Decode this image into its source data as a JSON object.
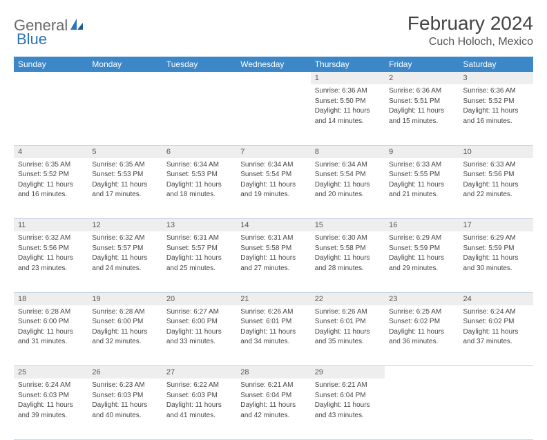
{
  "logo": {
    "part1": "General",
    "part2": "Blue"
  },
  "title": "February 2024",
  "location": "Cuch Holoch, Mexico",
  "colors": {
    "header_bg": "#3b87c8",
    "header_text": "#ffffff",
    "daynum_bg": "#eeeeee",
    "body_text": "#444444",
    "logo_gray": "#6a6a6a",
    "logo_blue": "#2a74b8",
    "grid_border": "#c9d6e2"
  },
  "weekdays": [
    "Sunday",
    "Monday",
    "Tuesday",
    "Wednesday",
    "Thursday",
    "Friday",
    "Saturday"
  ],
  "weeks": [
    [
      null,
      null,
      null,
      null,
      {
        "n": "1",
        "sr": "Sunrise: 6:36 AM",
        "ss": "Sunset: 5:50 PM",
        "d1": "Daylight: 11 hours",
        "d2": "and 14 minutes."
      },
      {
        "n": "2",
        "sr": "Sunrise: 6:36 AM",
        "ss": "Sunset: 5:51 PM",
        "d1": "Daylight: 11 hours",
        "d2": "and 15 minutes."
      },
      {
        "n": "3",
        "sr": "Sunrise: 6:36 AM",
        "ss": "Sunset: 5:52 PM",
        "d1": "Daylight: 11 hours",
        "d2": "and 16 minutes."
      }
    ],
    [
      {
        "n": "4",
        "sr": "Sunrise: 6:35 AM",
        "ss": "Sunset: 5:52 PM",
        "d1": "Daylight: 11 hours",
        "d2": "and 16 minutes."
      },
      {
        "n": "5",
        "sr": "Sunrise: 6:35 AM",
        "ss": "Sunset: 5:53 PM",
        "d1": "Daylight: 11 hours",
        "d2": "and 17 minutes."
      },
      {
        "n": "6",
        "sr": "Sunrise: 6:34 AM",
        "ss": "Sunset: 5:53 PM",
        "d1": "Daylight: 11 hours",
        "d2": "and 18 minutes."
      },
      {
        "n": "7",
        "sr": "Sunrise: 6:34 AM",
        "ss": "Sunset: 5:54 PM",
        "d1": "Daylight: 11 hours",
        "d2": "and 19 minutes."
      },
      {
        "n": "8",
        "sr": "Sunrise: 6:34 AM",
        "ss": "Sunset: 5:54 PM",
        "d1": "Daylight: 11 hours",
        "d2": "and 20 minutes."
      },
      {
        "n": "9",
        "sr": "Sunrise: 6:33 AM",
        "ss": "Sunset: 5:55 PM",
        "d1": "Daylight: 11 hours",
        "d2": "and 21 minutes."
      },
      {
        "n": "10",
        "sr": "Sunrise: 6:33 AM",
        "ss": "Sunset: 5:56 PM",
        "d1": "Daylight: 11 hours",
        "d2": "and 22 minutes."
      }
    ],
    [
      {
        "n": "11",
        "sr": "Sunrise: 6:32 AM",
        "ss": "Sunset: 5:56 PM",
        "d1": "Daylight: 11 hours",
        "d2": "and 23 minutes."
      },
      {
        "n": "12",
        "sr": "Sunrise: 6:32 AM",
        "ss": "Sunset: 5:57 PM",
        "d1": "Daylight: 11 hours",
        "d2": "and 24 minutes."
      },
      {
        "n": "13",
        "sr": "Sunrise: 6:31 AM",
        "ss": "Sunset: 5:57 PM",
        "d1": "Daylight: 11 hours",
        "d2": "and 25 minutes."
      },
      {
        "n": "14",
        "sr": "Sunrise: 6:31 AM",
        "ss": "Sunset: 5:58 PM",
        "d1": "Daylight: 11 hours",
        "d2": "and 27 minutes."
      },
      {
        "n": "15",
        "sr": "Sunrise: 6:30 AM",
        "ss": "Sunset: 5:58 PM",
        "d1": "Daylight: 11 hours",
        "d2": "and 28 minutes."
      },
      {
        "n": "16",
        "sr": "Sunrise: 6:29 AM",
        "ss": "Sunset: 5:59 PM",
        "d1": "Daylight: 11 hours",
        "d2": "and 29 minutes."
      },
      {
        "n": "17",
        "sr": "Sunrise: 6:29 AM",
        "ss": "Sunset: 5:59 PM",
        "d1": "Daylight: 11 hours",
        "d2": "and 30 minutes."
      }
    ],
    [
      {
        "n": "18",
        "sr": "Sunrise: 6:28 AM",
        "ss": "Sunset: 6:00 PM",
        "d1": "Daylight: 11 hours",
        "d2": "and 31 minutes."
      },
      {
        "n": "19",
        "sr": "Sunrise: 6:28 AM",
        "ss": "Sunset: 6:00 PM",
        "d1": "Daylight: 11 hours",
        "d2": "and 32 minutes."
      },
      {
        "n": "20",
        "sr": "Sunrise: 6:27 AM",
        "ss": "Sunset: 6:00 PM",
        "d1": "Daylight: 11 hours",
        "d2": "and 33 minutes."
      },
      {
        "n": "21",
        "sr": "Sunrise: 6:26 AM",
        "ss": "Sunset: 6:01 PM",
        "d1": "Daylight: 11 hours",
        "d2": "and 34 minutes."
      },
      {
        "n": "22",
        "sr": "Sunrise: 6:26 AM",
        "ss": "Sunset: 6:01 PM",
        "d1": "Daylight: 11 hours",
        "d2": "and 35 minutes."
      },
      {
        "n": "23",
        "sr": "Sunrise: 6:25 AM",
        "ss": "Sunset: 6:02 PM",
        "d1": "Daylight: 11 hours",
        "d2": "and 36 minutes."
      },
      {
        "n": "24",
        "sr": "Sunrise: 6:24 AM",
        "ss": "Sunset: 6:02 PM",
        "d1": "Daylight: 11 hours",
        "d2": "and 37 minutes."
      }
    ],
    [
      {
        "n": "25",
        "sr": "Sunrise: 6:24 AM",
        "ss": "Sunset: 6:03 PM",
        "d1": "Daylight: 11 hours",
        "d2": "and 39 minutes."
      },
      {
        "n": "26",
        "sr": "Sunrise: 6:23 AM",
        "ss": "Sunset: 6:03 PM",
        "d1": "Daylight: 11 hours",
        "d2": "and 40 minutes."
      },
      {
        "n": "27",
        "sr": "Sunrise: 6:22 AM",
        "ss": "Sunset: 6:03 PM",
        "d1": "Daylight: 11 hours",
        "d2": "and 41 minutes."
      },
      {
        "n": "28",
        "sr": "Sunrise: 6:21 AM",
        "ss": "Sunset: 6:04 PM",
        "d1": "Daylight: 11 hours",
        "d2": "and 42 minutes."
      },
      {
        "n": "29",
        "sr": "Sunrise: 6:21 AM",
        "ss": "Sunset: 6:04 PM",
        "d1": "Daylight: 11 hours",
        "d2": "and 43 minutes."
      },
      null,
      null
    ]
  ]
}
